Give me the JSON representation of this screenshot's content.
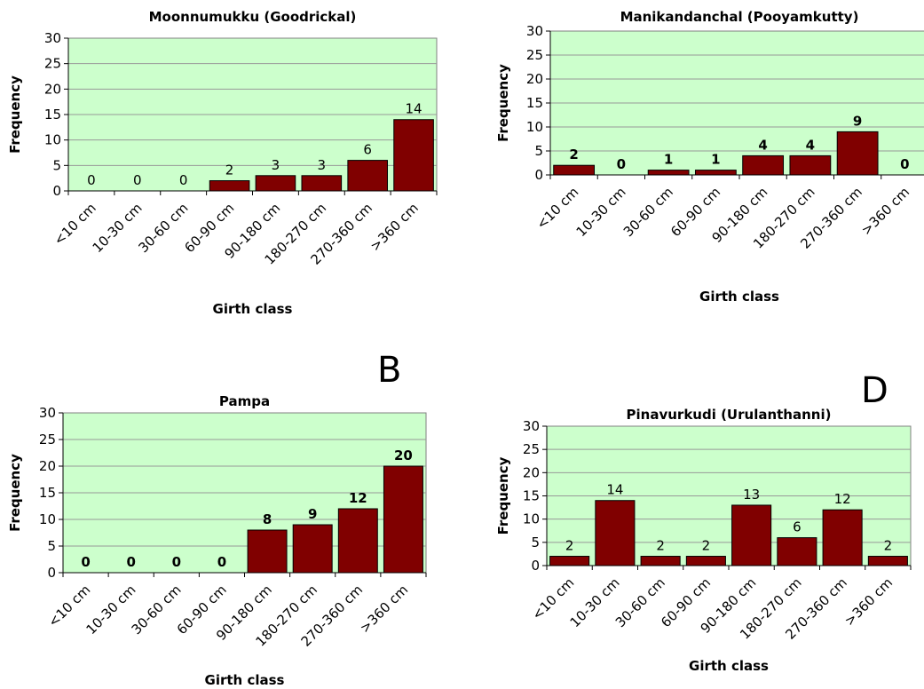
{
  "letters": {
    "b": "B",
    "d": "D"
  },
  "colors": {
    "plot_bg": "#ccffcc",
    "bar": "#800000",
    "bar_stroke": "#000000",
    "grid": "#999999",
    "axis": "#808080"
  },
  "chart_data": [
    {
      "type": "bar",
      "title": "Moonnumukku (Goodrickal)",
      "xlabel": "Girth class",
      "ylabel": "Frequency",
      "ylim": [
        0,
        30
      ],
      "yticks": [
        0,
        5,
        10,
        15,
        20,
        25,
        30
      ],
      "grid": true,
      "label_weight": "normal",
      "categories": [
        "<10 cm",
        "10-30 cm",
        "30-60 cm",
        "60-90 cm",
        "90-180 cm",
        "180-270 cm",
        "270-360 cm",
        ">360 cm"
      ],
      "values": [
        0,
        0,
        0,
        2,
        3,
        3,
        6,
        14
      ]
    },
    {
      "type": "bar",
      "title": "Manikandanchal (Pooyamkutty)",
      "xlabel": "Girth class",
      "ylabel": "Frequency",
      "ylim": [
        0,
        30
      ],
      "yticks": [
        0,
        5,
        10,
        15,
        20,
        25,
        30
      ],
      "grid": true,
      "label_weight": "bold",
      "categories": [
        "<10 cm",
        "10-30 cm",
        "30-60 cm",
        "60-90 cm",
        "90-180 cm",
        "180-270 cm",
        "270-360 cm",
        ">360 cm"
      ],
      "values": [
        2,
        0,
        1,
        1,
        4,
        4,
        9,
        0
      ]
    },
    {
      "type": "bar",
      "title": "Pampa",
      "xlabel": "Girth class",
      "ylabel": "Frequency",
      "ylim": [
        0,
        30
      ],
      "yticks": [
        0,
        5,
        10,
        15,
        20,
        25,
        30
      ],
      "grid": true,
      "label_weight": "bold",
      "categories": [
        "<10 cm",
        "10-30 cm",
        "30-60 cm",
        "60-90 cm",
        "90-180 cm",
        "180-270 cm",
        "270-360 cm",
        ">360 cm"
      ],
      "values": [
        0,
        0,
        0,
        0,
        8,
        9,
        12,
        20
      ]
    },
    {
      "type": "bar",
      "title": "Pinavurkudi (Urulanthanni)",
      "xlabel": "Girth class",
      "ylabel": "Frequency",
      "ylim": [
        0,
        30
      ],
      "yticks": [
        0,
        5,
        10,
        15,
        20,
        25,
        30
      ],
      "grid": true,
      "label_weight": "normal",
      "categories": [
        "<10 cm",
        "10-30 cm",
        "30-60 cm",
        "60-90 cm",
        "90-180 cm",
        "180-270 cm",
        "270-360 cm",
        ">360 cm"
      ],
      "values": [
        2,
        14,
        2,
        2,
        13,
        6,
        12,
        2
      ]
    }
  ]
}
